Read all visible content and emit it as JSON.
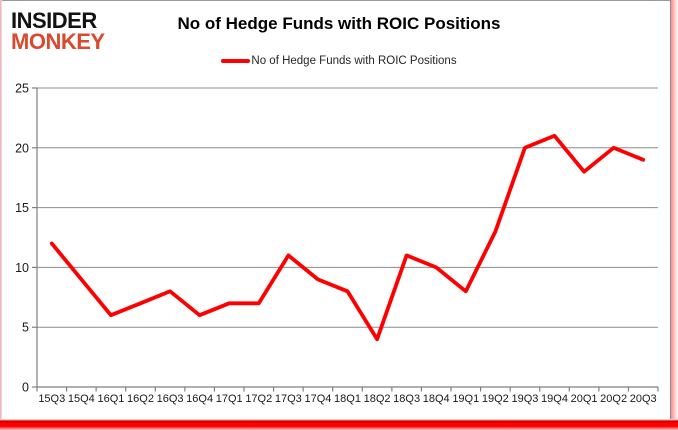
{
  "logo": {
    "line1": "INSIDER",
    "line2": "MONKEY"
  },
  "header": {
    "title": "No of Hedge Funds with ROIC Positions"
  },
  "legend": {
    "label": "No of Hedge Funds with ROIC Positions"
  },
  "chart_data": {
    "type": "line",
    "title": "No of Hedge Funds with ROIC Positions",
    "categories": [
      "15Q3",
      "15Q4",
      "16Q1",
      "16Q2",
      "16Q3",
      "16Q4",
      "17Q1",
      "17Q2",
      "17Q3",
      "17Q4",
      "18Q1",
      "18Q2",
      "18Q3",
      "18Q4",
      "19Q1",
      "19Q2",
      "19Q3",
      "19Q4",
      "20Q1",
      "20Q2",
      "20Q3"
    ],
    "series": [
      {
        "name": "No of Hedge Funds with ROIC Positions",
        "values": [
          12,
          9,
          6,
          7,
          8,
          6,
          7,
          7,
          11,
          9,
          8,
          4,
          11,
          10,
          8,
          13,
          20,
          21,
          18,
          20,
          19
        ]
      }
    ],
    "xlabel": "",
    "ylabel": "",
    "ylim": [
      0,
      25
    ],
    "yticks": [
      0,
      5,
      10,
      15,
      20,
      25
    ],
    "grid": true,
    "legend_position": "top-center",
    "line_color": "#ff0000",
    "gridline_color": "#8c8c8c",
    "axis_color": "#7f7f7f",
    "axis_label_color": "#1a1a1a"
  },
  "colors": {
    "logo_black": "#121212",
    "logo_red": "#d9492e",
    "accent_red": "#ff0000",
    "frame_bottom_red": "#ff0000"
  }
}
